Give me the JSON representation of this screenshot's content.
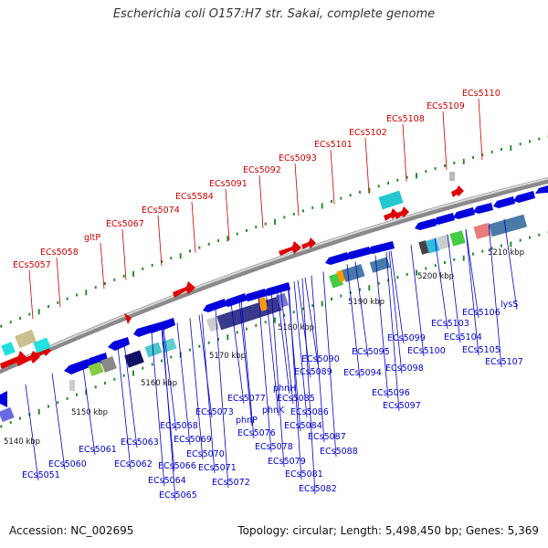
{
  "title": "Escherichia coli O157:H7 str. Sakai, complete genome",
  "footer": {
    "accession": "Accession: NC_002695",
    "summary": "Topology: circular; Length: 5,498,450 bp; Genes: 5,369"
  },
  "colors": {
    "forward_label": "#cc0000",
    "reverse_label": "#0000cc",
    "backbone": "#8a8a8a",
    "dotted_track": "#2e8b2e"
  },
  "ticks": [
    "5140 kbp",
    "5150 kbp",
    "5160 kbp",
    "5170 kbp",
    "5180 kbp",
    "5190 kbp",
    "5200 kbp",
    "5210 kbp"
  ],
  "forward_labels": [
    "ECs5057",
    "ECs5058",
    "gltP",
    "ECs5067",
    "ECs5074",
    "ECs5584",
    "ECs5091",
    "ECs5092",
    "ECs5093",
    "ECs5101",
    "ECs5102",
    "ECs5108",
    "ECs5109",
    "ECs5110"
  ],
  "reverse_labels": [
    "ECs5051",
    "ECs5060",
    "ECs5061",
    "ECs5062",
    "ECs5063",
    "ECs5064",
    "ECs5065",
    "ECs5066",
    "ECs5068",
    "ECs5069",
    "ECs5070",
    "ECs5071",
    "ECs5072",
    "ECs5073",
    "ECs5077",
    "phnP",
    "ECs5076",
    "ECs5078",
    "ECs5079",
    "phnK",
    "phnH",
    "ECs5081",
    "ECs5082",
    "ECs5084",
    "ECs5085",
    "ECs5086",
    "ECs5087",
    "ECs5088",
    "ECs5089",
    "ECs5090",
    "ECs5094",
    "ECs5095",
    "ECs5096",
    "ECs5097",
    "ECs5098",
    "ECs5099",
    "ECs5100",
    "ECs5103",
    "ECs5104",
    "ECs5105",
    "ECs5106",
    "ECs5107",
    "lysS"
  ]
}
